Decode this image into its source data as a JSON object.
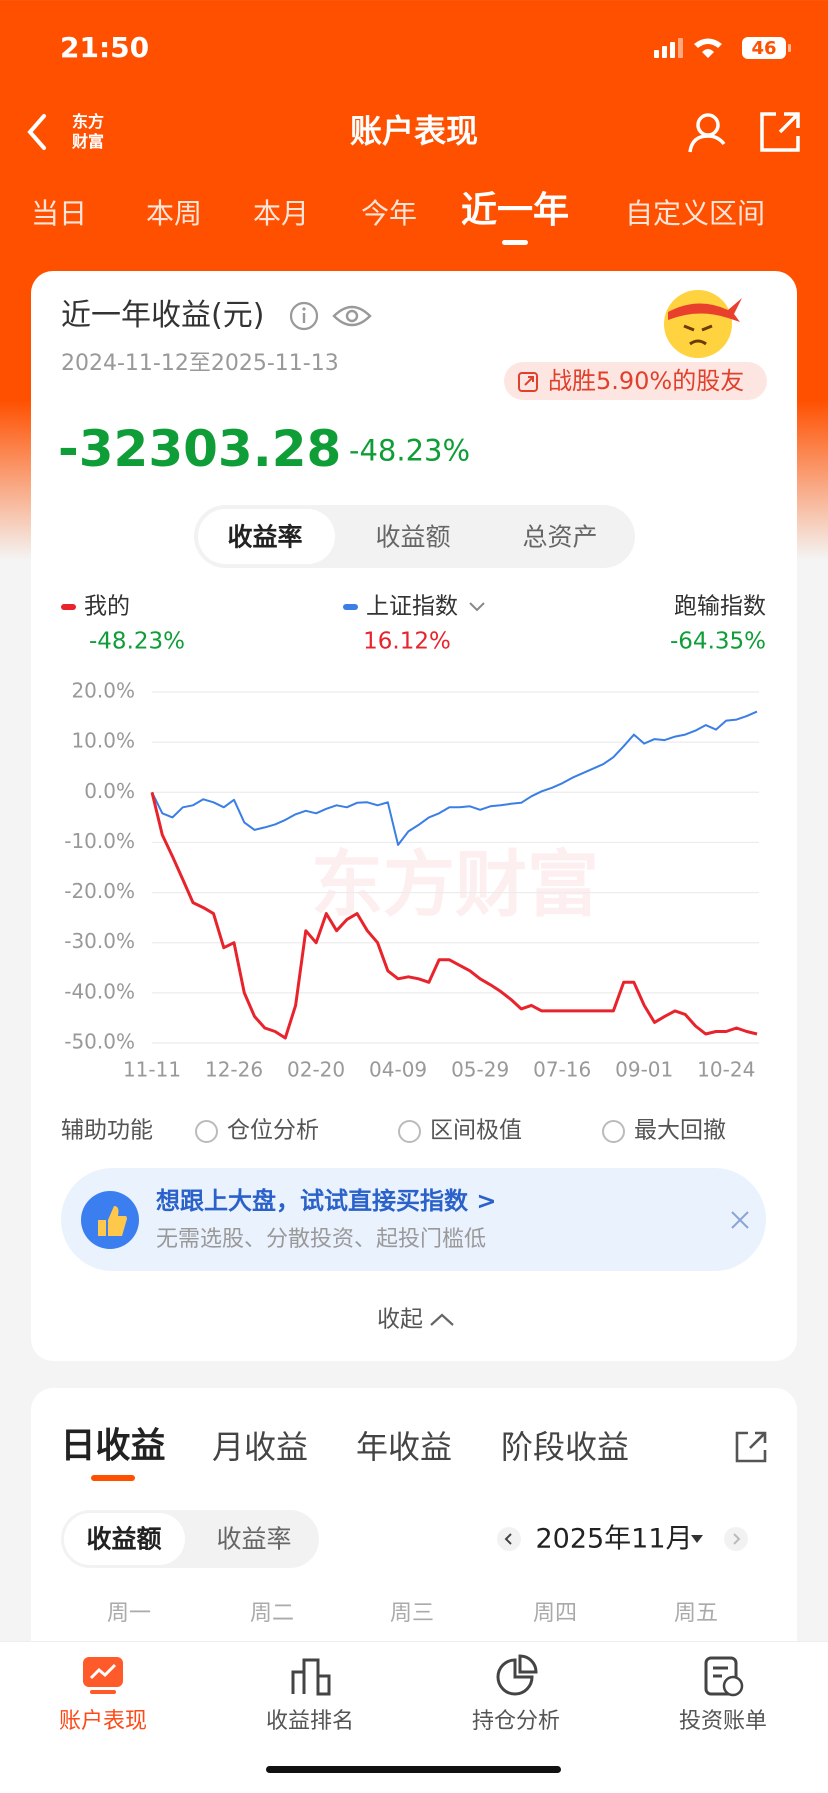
{
  "status_bar": {
    "time": "21:50",
    "battery": "46"
  },
  "header": {
    "title": "账户表现",
    "logo_top": "东方",
    "logo_bottom": "财富"
  },
  "period_tabs": [
    "当日",
    "本周",
    "本月",
    "今年",
    "近一年",
    "自定义区间"
  ],
  "summary": {
    "title": "近一年收益(元)",
    "date_range": "2024-11-12至2025-11-13",
    "badge": "战胜5.90%的股友",
    "amount": "-32303.28",
    "rate": "-48.23%"
  },
  "metric_tabs": [
    "收益率",
    "收益额",
    "总资产"
  ],
  "legend_values": [
    "-48.23%",
    "16.12%"
  ],
  "relative": {
    "name": "跑输指数",
    "value": "-64.35%"
  },
  "chart_data": {
    "type": "line",
    "watermark": "东方财富",
    "categories": [
      "11-11",
      null,
      null,
      null,
      null,
      null,
      null,
      null,
      "12-26",
      null,
      null,
      null,
      null,
      null,
      null,
      null,
      "02-20",
      null,
      null,
      null,
      null,
      null,
      null,
      null,
      "04-09",
      null,
      null,
      null,
      null,
      null,
      null,
      null,
      "05-29",
      null,
      null,
      null,
      null,
      null,
      null,
      null,
      "07-16",
      null,
      null,
      null,
      null,
      null,
      null,
      null,
      "09-01",
      null,
      null,
      null,
      null,
      null,
      null,
      null,
      "10-24",
      null,
      null,
      null
    ],
    "series": [
      {
        "name": "我的",
        "color": "#e8232b",
        "values": [
          0,
          -8.5,
          -12.8,
          -17.4,
          -22,
          -23,
          -24.2,
          -31,
          -30,
          -40,
          -44.7,
          -47,
          -47.7,
          -49,
          -42.5,
          -27.6,
          -30,
          -24.2,
          -27.6,
          -25.4,
          -24.2,
          -27.6,
          -30,
          -35.6,
          -37.2,
          -36.8,
          -37.2,
          -37.9,
          -33.4,
          -33.4,
          -34.5,
          -35.6,
          -37.2,
          -38.4,
          -39.7,
          -41.3,
          -43.2,
          -42.5,
          -43.6,
          -43.6,
          -43.6,
          -43.6,
          -43.6,
          -43.6,
          -43.6,
          -43.6,
          -37.9,
          -37.9,
          -42.5,
          -45.9,
          -44.7,
          -43.6,
          -44.3,
          -46.6,
          -48.2,
          -47.7,
          -47.7,
          -47,
          -47.7,
          -48.2
        ]
      },
      {
        "name": "上证指数",
        "color": "#3a7ee6",
        "values": [
          0,
          -4.2,
          -5,
          -3,
          -2.6,
          -1.4,
          -2,
          -3,
          -1.5,
          -6,
          -7.5,
          -7,
          -6.4,
          -5.5,
          -4.4,
          -3.7,
          -4.2,
          -3.3,
          -2.6,
          -3,
          -2.1,
          -2,
          -2.6,
          -2,
          -10.5,
          -7.8,
          -6.5,
          -5,
          -4.2,
          -3,
          -3,
          -2.8,
          -3.5,
          -2.8,
          -2.6,
          -2.3,
          -2.1,
          -0.8,
          0.2,
          0.9,
          1.8,
          2.9,
          3.8,
          4.7,
          5.6,
          7,
          9.2,
          11.5,
          9.7,
          10.6,
          10.4,
          11.1,
          11.5,
          12.3,
          13.4,
          12.5,
          14.3,
          14.5,
          15.2,
          16.1
        ]
      }
    ],
    "ylim": [
      -50,
      20
    ],
    "yticks": [
      {
        "value": 20,
        "label": "20.0%"
      },
      {
        "value": 10,
        "label": "10.0%"
      },
      {
        "value": 0,
        "label": "0.0%"
      },
      {
        "value": -10,
        "label": "-10.0%"
      },
      {
        "value": -20,
        "label": "-20.0%"
      },
      {
        "value": -30,
        "label": "-30.0%"
      },
      {
        "value": -40,
        "label": "-40.0%"
      },
      {
        "value": -50,
        "label": "-50.0%"
      }
    ],
    "grid": true
  },
  "tools": {
    "label": "辅助功能",
    "options": [
      "仓位分析",
      "区间极值",
      "最大回撤"
    ]
  },
  "promo": {
    "title": "想跟上大盘，试试直接买指数 >",
    "subtitle": "无需选股、分散投资、起投门槛低"
  },
  "collapse": "收起",
  "earnings_tabs": [
    "日收益",
    "月收益",
    "年收益",
    "阶段收益"
  ],
  "earnings_toggle": [
    "收益额",
    "收益率"
  ],
  "month": "2025年11月",
  "weekdays": [
    "周一",
    "周二",
    "周三",
    "周四",
    "周五"
  ],
  "bottom_nav": [
    "账户表现",
    "收益排名",
    "持仓分析",
    "投资账单"
  ]
}
